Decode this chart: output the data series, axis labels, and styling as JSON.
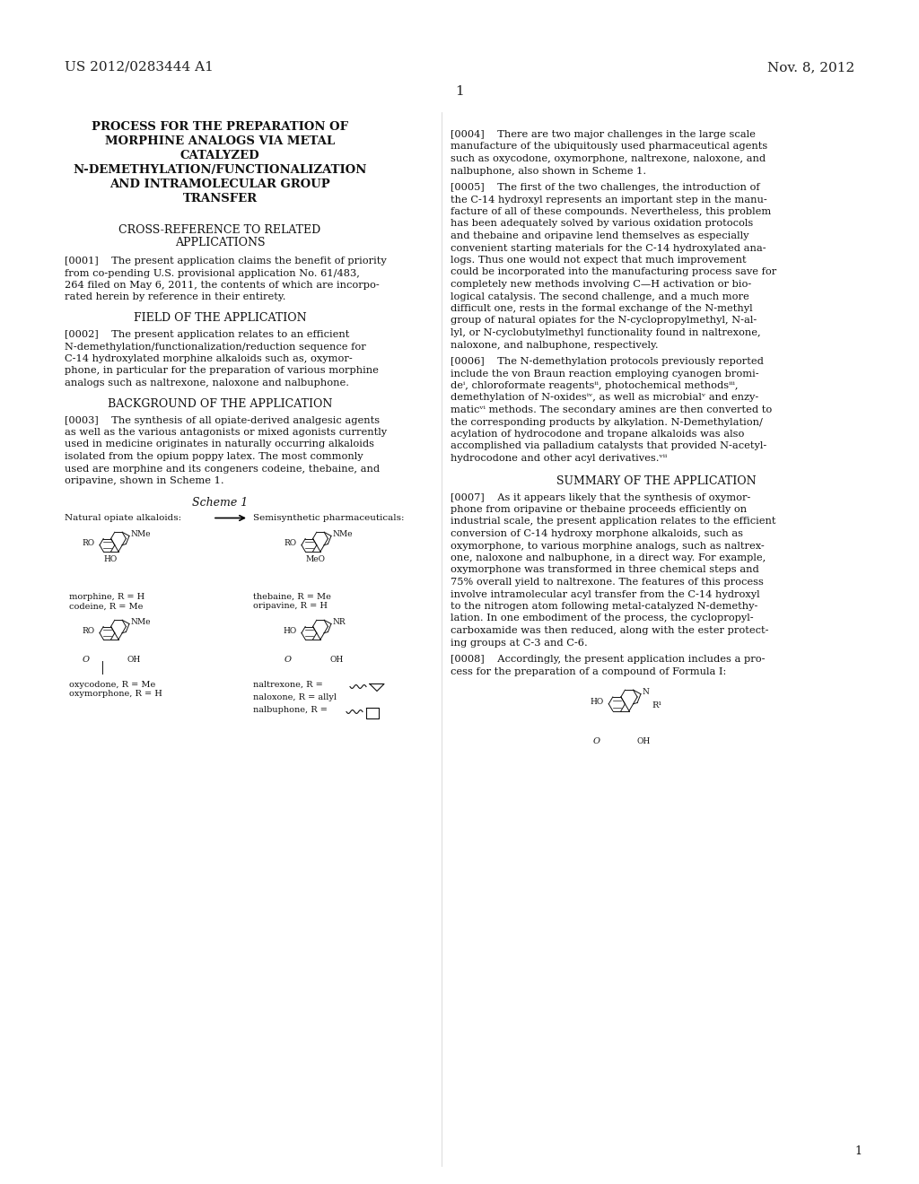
{
  "bg_color": "#ffffff",
  "header_left": "US 2012/0283444 A1",
  "header_right": "Nov. 8, 2012",
  "page_number_center": "1",
  "title_lines": [
    "PROCESS FOR THE PREPARATION OF",
    "MORPHINE ANALOGS VIA METAL",
    "CATALYZED",
    "N-DEMETHYLATION/FUNCTIONALIZATION",
    "AND INTRAMOLECULAR GROUP",
    "TRANSFER"
  ],
  "section1_header": "CROSS-REFERENCE TO RELATED\nAPPLICATIONS",
  "para0001": "[0001] The present application claims the benefit of priority from co-pending U.S. provisional application No. 61/483,264 filed on May 6, 2011, the contents of which are incorporated herein by reference in their entirety.",
  "section2_header": "FIELD OF THE APPLICATION",
  "para0002": "[0002] The present application relates to an efficient N-demethylation/functionalization/reduction sequence for C-14 hydroxylated morphine alkaloids such as, oxymorphone, in particular for the preparation of various morphine analogs such as naltrexone, naloxone and nalbuphone.",
  "section3_header": "BACKGROUND OF THE APPLICATION",
  "para0003": "[0003] The synthesis of all opiate-derived analgesic agents as well as the various antagonists or mixed agonists currently used in medicine originates in naturally occurring alkaloids isolated from the opium poppy latex. The most commonly used are morphine and its congeners codeine, thebaine, and oripavine, shown in Scheme 1.",
  "scheme1_label": "Scheme 1",
  "scheme1_left_label": "Natural opiate alkaloids:",
  "scheme1_right_label": "Semisynthetic pharmaceuticals:",
  "morph_label1": "morphine, R = H",
  "morph_label2": "codeine, R = Me",
  "thebaine_label1": "thebaine, R = Me",
  "thebaine_label2": "oripavine, R = H",
  "oxy_label1": "oxycodone, R = Me",
  "oxy_label2": "oxymorphone, R = H",
  "naltrexone_label": "naltrexone, R =",
  "naloxone_label": "naloxone, R = allyl",
  "nalbuphone_label": "nalbuphone, R =",
  "right_para0004": "[0004] There are two major challenges in the large scale manufacture of the ubiquitously used pharmaceutical agents such as oxycodone, oxymorphone, naltrexone, naloxone, and nalbuphone, also shown in Scheme 1.",
  "right_para0005": "[0005] The first of the two challenges, the introduction of the C-14 hydroxyl represents an important step in the manufacture of all of these compounds. Nevertheless, this problem has been adequately solved by various oxidation protocols and thebaine and oripavine lend themselves as especially convenient starting materials for the C-14 hydroxylated analogs. Thus one would not expect that much improvement could be incorporated into the manufacturing process save for completely new methods involving C—H activation or biological catalysis. The second challenge, and a much more difficult one, rests in the formal exchange of the N-methyl group of natural opiates for the N-cyclopropylmethyl, N-allyl, or N-cyclobutylmethyl functionality found in naltrexone, naloxone, and nalbuphone, respectively.",
  "right_para0006": "[0006] The N-demethylation protocols previously reported include the von Braun reaction employing cyanogen bromideⁱ, chloroformate reagentsⁱⁱ, photochemical methodsⁱⁱⁱ, demethylation of N-oxidesⁱᵛ, as well as microbialᵛ and enzymaticᵛⁱ methods. The secondary amines are then converted to the corresponding products by alkylation. N-Demethylation/acylation of hydrocodone and tropane alkaloids was also accomplished via palladium catalysts that provided N-acetyl-hydrocodone and other acyl derivatives.ᵛⁱⁱ",
  "right_section_summary": "SUMMARY OF THE APPLICATION",
  "right_para0007": "[0007] As it appears likely that the synthesis of oxymorphone from oripavine or thebaine proceeds efficiently on industrial scale, the present application relates to the efficient conversion of C-14 hydroxy morphone alkaloids, such as oxymorphone, to various morphine analogs, such as naltrexone, naloxone and nalbuphone, in a direct way. For example, oxymorphone was transformed in three chemical steps and 75% overall yield to naltrexone. The features of this process involve intramolecular acyl transfer from the C-14 hydroxyl to the nitrogen atom following metal-catalyzed N-demethylation. In one embodiment of the process, the cyclopropylcarboxamide was then reduced, along with the ester protecting groups at C-3 and C-6.",
  "right_para0008": "[0008] Accordingly, the present application includes a process for the preparation of a compound of Formula I:",
  "footnote_page": "1"
}
